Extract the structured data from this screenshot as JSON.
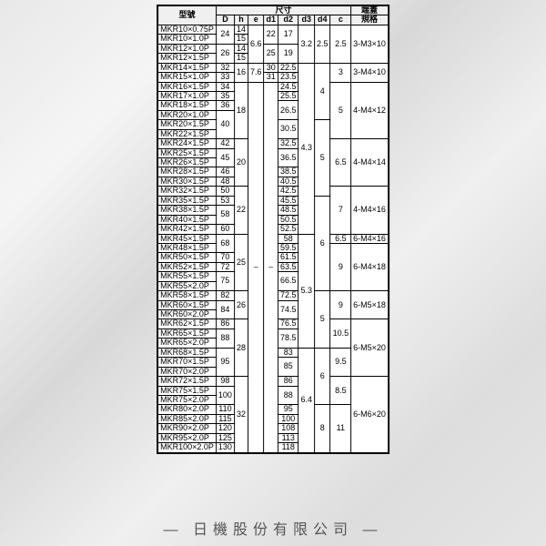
{
  "header": {
    "model": "型號",
    "size": "尺寸",
    "cap": "端蓋",
    "cap2": "規格",
    "cols": [
      "D",
      "h",
      "e",
      "d1",
      "d2",
      "d3",
      "d4",
      "c"
    ]
  },
  "footer": "— 日機股份有限公司 —",
  "models": [
    "MKR10×0.75P",
    "MKR10×1.0P",
    "MKR12×1.0P",
    "MKR12×1.5P",
    "MKR14×1.5P",
    "MKR15×1.0P",
    "MKR16×1.5P",
    "MKR17×1.0P",
    "MKR18×1.5P",
    "MKR20×1.0P",
    "MKR20×1.5P",
    "MKR22×1.5P",
    "MKR24×1.5P",
    "MKR25×1.5P",
    "MKR26×1.5P",
    "MKR28×1.5P",
    "MKR30×1.5P",
    "MKR32×1.5P",
    "MKR35×1.5P",
    "MKR38×1.5P",
    "MKR40×1.5P",
    "MKR42×1.5P",
    "MKR45×1.5P",
    "MKR48×1.5P",
    "MKR50×1.5P",
    "MKR52×1.5P",
    "MKR55×1.5P",
    "MKR55×2.0P",
    "MKR58×1.5P",
    "MKR60×1.5P",
    "MKR60×2.0P",
    "MKR62×1.5P",
    "MKR65×1.5P",
    "MKR65×2.0P",
    "MKR68×1.5P",
    "MKR70×1.5P",
    "MKR70×2.0P",
    "MKR72×1.5P",
    "MKR75×1.5P",
    "MKR75×2.0P",
    "MKR80×2.0P",
    "MKR85×2.0P",
    "MKR90×2.0P",
    "MKR95×2.0P",
    "MKR100×2.0P"
  ],
  "D": [
    "24",
    "26",
    "32",
    "33",
    "34",
    "35",
    "36",
    "40",
    "42",
    "45",
    "46",
    "48",
    "50",
    "53",
    "58",
    "60",
    "68",
    "70",
    "72",
    "75",
    "82",
    "84",
    "86",
    "88",
    "95",
    "98",
    "100",
    "110",
    "115",
    "120",
    "125",
    "130"
  ],
  "h_vals": [
    "14",
    "15",
    "14",
    "15",
    "16",
    "18",
    "20",
    "22",
    "25",
    "26",
    "28",
    "32"
  ],
  "e_vals": [
    "6.6",
    "7.6",
    "–"
  ],
  "d1_vals": [
    "22",
    "25",
    "30",
    "31",
    "–"
  ],
  "d2": [
    "17",
    "19",
    "22.5",
    "23.5",
    "24.5",
    "25.5",
    "26.5",
    "30.5",
    "32.5",
    "36.5",
    "38.5",
    "40.5",
    "42.5",
    "45.5",
    "48.5",
    "50.5",
    "52.5",
    "58",
    "59.5",
    "61.5",
    "63.5",
    "66.5",
    "72.5",
    "74.5",
    "76.5",
    "78.5",
    "83",
    "85",
    "86",
    "88",
    "95",
    "100",
    "108",
    "113",
    "118"
  ],
  "d3_vals": [
    "3.2",
    "4.3",
    "5.3",
    "6.4"
  ],
  "d4_vals": [
    "2.5",
    "4",
    "5",
    "6",
    "5",
    "6",
    "8"
  ],
  "c_vals": [
    "2.5",
    "3",
    "5",
    "6.5",
    "7",
    "6.5",
    "9",
    "10.5",
    "9.5",
    "8.5",
    "11"
  ],
  "caps": [
    "3-M3×10",
    "3-M4×10",
    "4-M4×12",
    "4-M4×14",
    "4-M4×16",
    "6-M4×16",
    "6-M4×18",
    "6-M5×18",
    "6-M5×20",
    "6-M6×20"
  ]
}
